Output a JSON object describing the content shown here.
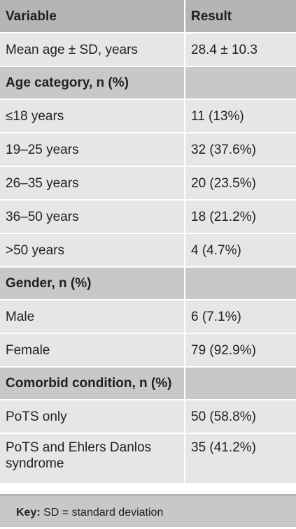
{
  "table": {
    "headers": [
      "Variable",
      "Result"
    ],
    "rows": [
      {
        "kind": "row",
        "variable": "Mean age ± SD, years",
        "result": "28.4 ± 10.3"
      },
      {
        "kind": "section",
        "variable": "Age category, n (%)",
        "result": ""
      },
      {
        "kind": "row",
        "variable": "≤18 years",
        "result": "11 (13%)"
      },
      {
        "kind": "row",
        "variable": "19–25 years",
        "result": "32 (37.6%)"
      },
      {
        "kind": "row",
        "variable": "26–35 years",
        "result": "20 (23.5%)"
      },
      {
        "kind": "row",
        "variable": "36–50 years",
        "result": "18 (21.2%)"
      },
      {
        "kind": "row",
        "variable": ">50 years",
        "result": "4 (4.7%)"
      },
      {
        "kind": "section",
        "variable": "Gender, n (%)",
        "result": ""
      },
      {
        "kind": "row",
        "variable": "Male",
        "result": "6 (7.1%)"
      },
      {
        "kind": "row",
        "variable": "Female",
        "result": "79 (92.9%)"
      },
      {
        "kind": "section",
        "variable": "Comorbid condition, n (%)",
        "result": ""
      },
      {
        "kind": "row",
        "variable": "PoTS only",
        "result": "50 (58.8%)"
      },
      {
        "kind": "row",
        "variable": "PoTS and Ehlers Danlos syndrome",
        "result": "35 (41.2%)"
      }
    ]
  },
  "key": {
    "label": "Key:",
    "text": " SD = standard deviation"
  },
  "colors": {
    "header_bg": "#b7b5b4",
    "section_bg": "#c9c8c7",
    "row_bg": "#e6e6e5"
  }
}
